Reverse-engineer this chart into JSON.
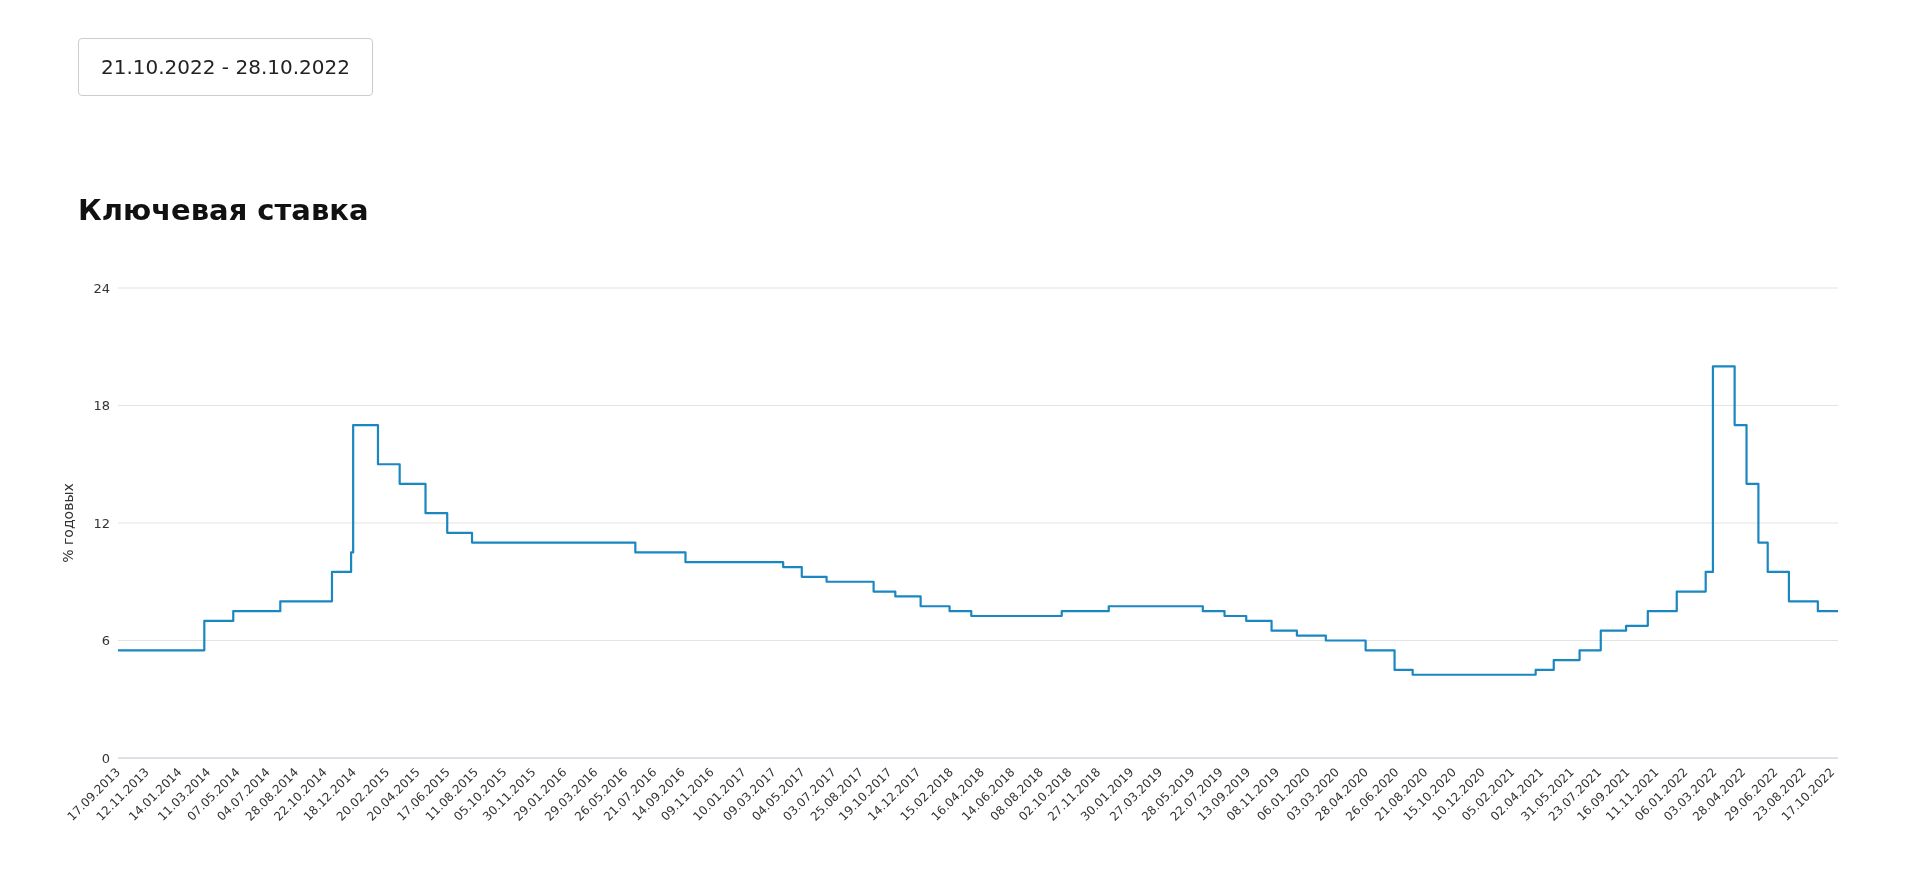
{
  "chart_data": {
    "type": "step",
    "title": "Ключевая ставка",
    "ylabel": "% годовых",
    "annotations": [
      "21.10.2022 - 28.10.2022"
    ],
    "x": [
      "2013-09-17",
      "2014-03-03",
      "2014-04-28",
      "2014-07-28",
      "2014-11-05",
      "2014-12-12",
      "2014-12-16",
      "2015-02-02",
      "2015-03-16",
      "2015-05-05",
      "2015-06-16",
      "2015-08-03",
      "2016-06-14",
      "2016-09-19",
      "2017-03-27",
      "2017-05-02",
      "2017-06-19",
      "2017-09-18",
      "2017-10-30",
      "2017-12-18",
      "2018-02-12",
      "2018-03-26",
      "2018-09-17",
      "2018-12-17",
      "2019-06-17",
      "2019-07-29",
      "2019-09-09",
      "2019-10-28",
      "2019-12-16",
      "2020-02-10",
      "2020-04-27",
      "2020-06-22",
      "2020-07-27",
      "2021-03-22",
      "2021-04-26",
      "2021-06-15",
      "2021-07-26",
      "2021-09-13",
      "2021-10-25",
      "2021-12-20",
      "2022-02-14",
      "2022-02-28",
      "2022-04-11",
      "2022-05-04",
      "2022-05-27",
      "2022-06-14",
      "2022-07-25",
      "2022-09-19",
      "2022-10-28"
    ],
    "series": [
      {
        "color": "#1a87c0",
        "values": [
          5.5,
          7,
          7.5,
          8,
          9.5,
          10.5,
          17,
          15,
          14,
          12.5,
          11.5,
          11,
          10.5,
          10,
          9.75,
          9.25,
          9,
          8.5,
          8.25,
          7.75,
          7.5,
          7.25,
          7.5,
          7.75,
          7.5,
          7.25,
          7,
          6.5,
          6.25,
          6,
          5.5,
          4.5,
          4.25,
          4.5,
          5,
          5.5,
          6.5,
          6.75,
          7.5,
          8.5,
          9.5,
          20,
          17,
          14,
          11,
          9.5,
          8,
          7.5,
          7.5
        ]
      }
    ],
    "xlim": [
      "2013-09-17",
      "2022-10-28"
    ],
    "xticks": [
      {
        "value": "2013-09-17",
        "label": "17.09.2013"
      },
      {
        "value": "2013-11-12",
        "label": "12.11.2013"
      },
      {
        "value": "2014-01-14",
        "label": "14.01.2014"
      },
      {
        "value": "2014-03-11",
        "label": "11.03.2014"
      },
      {
        "value": "2014-05-07",
        "label": "07.05.2014"
      },
      {
        "value": "2014-07-04",
        "label": "04.07.2014"
      },
      {
        "value": "2014-08-28",
        "label": "28.08.2014"
      },
      {
        "value": "2014-10-22",
        "label": "22.10.2014"
      },
      {
        "value": "2014-12-18",
        "label": "18.12.2014"
      },
      {
        "value": "2015-02-20",
        "label": "20.02.2015"
      },
      {
        "value": "2015-04-20",
        "label": "20.04.2015"
      },
      {
        "value": "2015-06-17",
        "label": "17.06.2015"
      },
      {
        "value": "2015-08-11",
        "label": "11.08.2015"
      },
      {
        "value": "2015-10-05",
        "label": "05.10.2015"
      },
      {
        "value": "2015-11-30",
        "label": "30.11.2015"
      },
      {
        "value": "2016-01-29",
        "label": "29.01.2016"
      },
      {
        "value": "2016-03-29",
        "label": "29.03.2016"
      },
      {
        "value": "2016-05-26",
        "label": "26.05.2016"
      },
      {
        "value": "2016-07-21",
        "label": "21.07.2016"
      },
      {
        "value": "2016-09-14",
        "label": "14.09.2016"
      },
      {
        "value": "2016-11-09",
        "label": "09.11.2016"
      },
      {
        "value": "2017-01-10",
        "label": "10.01.2017"
      },
      {
        "value": "2017-03-09",
        "label": "09.03.2017"
      },
      {
        "value": "2017-05-04",
        "label": "04.05.2017"
      },
      {
        "value": "2017-07-03",
        "label": "03.07.2017"
      },
      {
        "value": "2017-08-25",
        "label": "25.08.2017"
      },
      {
        "value": "2017-10-19",
        "label": "19.10.2017"
      },
      {
        "value": "2017-12-14",
        "label": "14.12.2017"
      },
      {
        "value": "2018-02-15",
        "label": "15.02.2018"
      },
      {
        "value": "2018-04-16",
        "label": "16.04.2018"
      },
      {
        "value": "2018-06-14",
        "label": "14.06.2018"
      },
      {
        "value": "2018-08-08",
        "label": "08.08.2018"
      },
      {
        "value": "2018-10-02",
        "label": "02.10.2018"
      },
      {
        "value": "2018-11-27",
        "label": "27.11.2018"
      },
      {
        "value": "2019-01-30",
        "label": "30.01.2019"
      },
      {
        "value": "2019-03-27",
        "label": "27.03.2019"
      },
      {
        "value": "2019-05-28",
        "label": "28.05.2019"
      },
      {
        "value": "2019-07-22",
        "label": "22.07.2019"
      },
      {
        "value": "2019-09-13",
        "label": "13.09.2019"
      },
      {
        "value": "2019-11-08",
        "label": "08.11.2019"
      },
      {
        "value": "2020-01-06",
        "label": "06.01.2020"
      },
      {
        "value": "2020-03-03",
        "label": "03.03.2020"
      },
      {
        "value": "2020-04-28",
        "label": "28.04.2020"
      },
      {
        "value": "2020-06-26",
        "label": "26.06.2020"
      },
      {
        "value": "2020-08-21",
        "label": "21.08.2020"
      },
      {
        "value": "2020-10-15",
        "label": "15.10.2020"
      },
      {
        "value": "2020-12-10",
        "label": "10.12.2020"
      },
      {
        "value": "2021-02-05",
        "label": "05.02.2021"
      },
      {
        "value": "2021-04-02",
        "label": "02.04.2021"
      },
      {
        "value": "2021-05-31",
        "label": "31.05.2021"
      },
      {
        "value": "2021-07-23",
        "label": "23.07.2021"
      },
      {
        "value": "2021-09-16",
        "label": "16.09.2021"
      },
      {
        "value": "2021-11-11",
        "label": "11.11.2021"
      },
      {
        "value": "2022-01-06",
        "label": "06.01.2022"
      },
      {
        "value": "2022-03-03",
        "label": "03.03.2022"
      },
      {
        "value": "2022-04-28",
        "label": "28.04.2022"
      },
      {
        "value": "2022-06-29",
        "label": "29.06.2022"
      },
      {
        "value": "2022-08-23",
        "label": "23.08.2022"
      },
      {
        "value": "2022-10-17",
        "label": "17.10.2022"
      }
    ],
    "ylim": [
      0,
      24
    ],
    "yticks": [
      0,
      6,
      12,
      18,
      24
    ],
    "grid": "y",
    "legend": false,
    "marker": "none",
    "line_style": "solid"
  }
}
